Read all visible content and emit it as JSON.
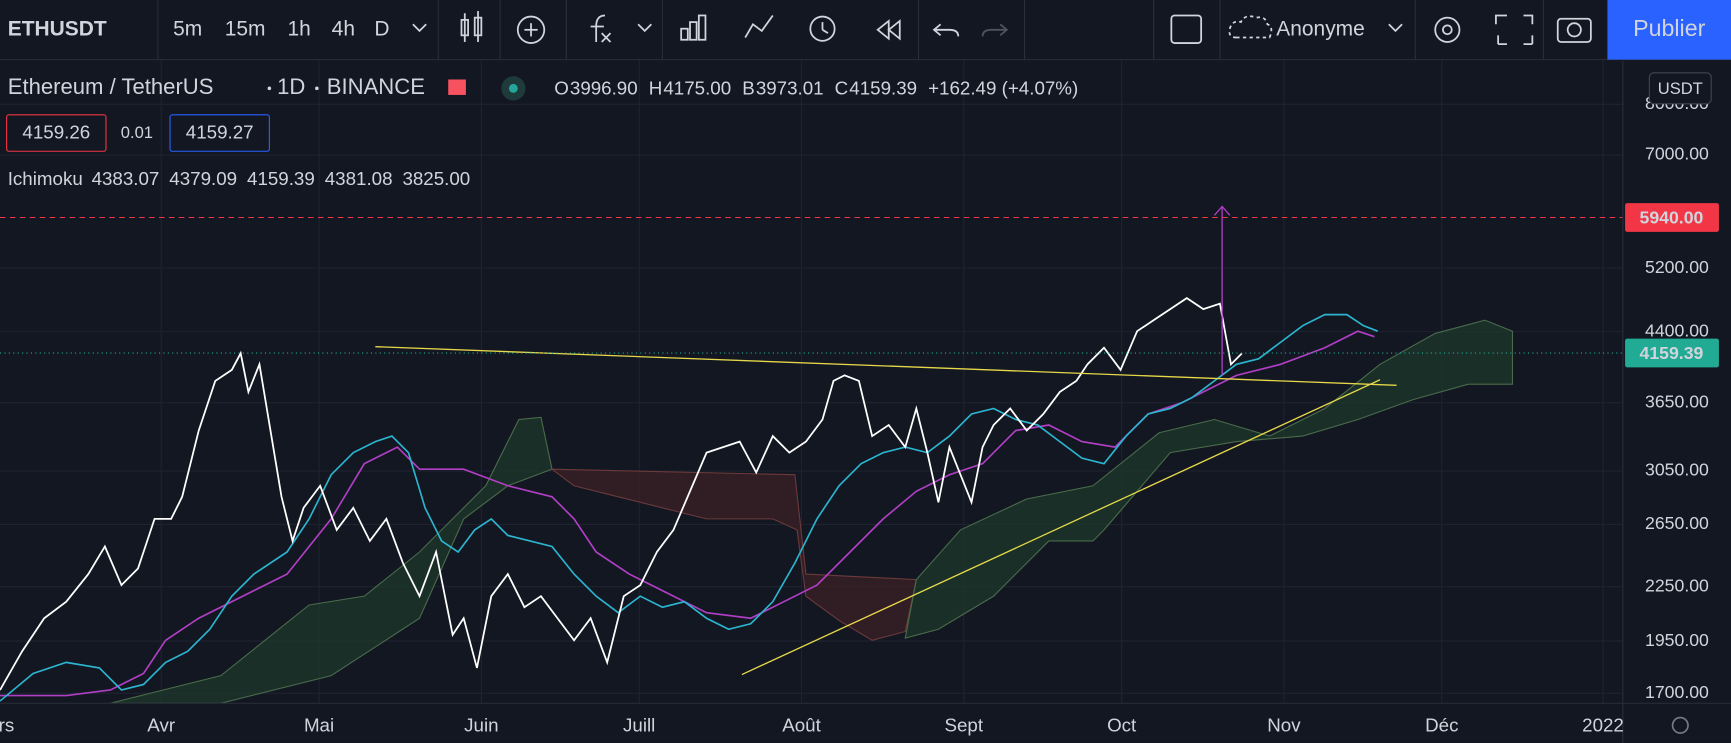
{
  "toolbar": {
    "symbol": "ETHUSDT",
    "intervals": [
      "5m",
      "15m",
      "1h",
      "4h",
      "D"
    ],
    "account": "Anonyme",
    "publish": "Publier"
  },
  "legend": {
    "symbol_name": "Ethereum / TetherUS",
    "interval": "1D",
    "exchange": "BINANCE",
    "ohlc": [
      {
        "label": "O",
        "value": "3996.90"
      },
      {
        "label": "H",
        "value": "4175.00"
      },
      {
        "label": "B",
        "value": "3973.01"
      },
      {
        "label": "C",
        "value": "4159.39"
      }
    ],
    "change": "+162.49 (+4.07%)",
    "bid": "4159.26",
    "spread": "0.01",
    "ask": "4159.27",
    "indicator": {
      "name": "Ichimoku",
      "values": [
        "4383.07",
        "4379.09",
        "4159.39",
        "4381.08",
        "3825.00"
      ]
    }
  },
  "price_axis": {
    "currency": "USDT",
    "log_scale": true,
    "ylim": [
      1656,
      8997
    ],
    "yticks": [
      {
        "value": 8000,
        "label": "8000.00"
      },
      {
        "value": 7000,
        "label": "7000.00"
      },
      {
        "value": 5200,
        "label": "5200.00"
      },
      {
        "value": 4400,
        "label": "4400.00"
      },
      {
        "value": 3650,
        "label": "3650.00"
      },
      {
        "value": 3050,
        "label": "3050.00"
      },
      {
        "value": 2650,
        "label": "2650.00"
      },
      {
        "value": 2250,
        "label": "2250.00"
      },
      {
        "value": 1950,
        "label": "1950.00"
      },
      {
        "value": 1700,
        "label": "1700.00"
      }
    ],
    "markers": [
      {
        "value": 5940,
        "label": "5940.00",
        "color": "#f23645",
        "dashed": true
      },
      {
        "value": 4159.39,
        "label": "4159.39",
        "color": "#22ab94",
        "dashed": false
      }
    ]
  },
  "time_axis": {
    "labels": [
      "Mars",
      "Avr",
      "Mai",
      "Juin",
      "Juill",
      "Août",
      "Sept",
      "Oct",
      "Nov",
      "Déc",
      "2022"
    ]
  }
}
